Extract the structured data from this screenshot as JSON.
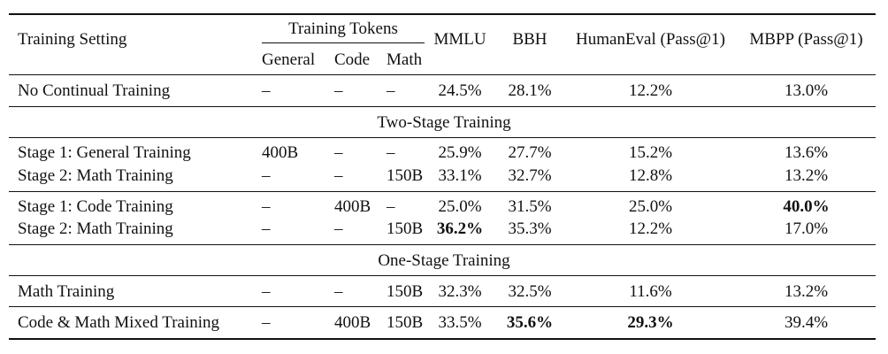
{
  "table": {
    "headers": {
      "setting": "Training Setting",
      "training_tokens": "Training Tokens",
      "general": "General",
      "code": "Code",
      "math": "Math",
      "mmlu": "MMLU",
      "bbh": "BBH",
      "humaneval": "HumanEval (Pass@1)",
      "mbpp": "MBPP (Pass@1)"
    },
    "sections": {
      "two_stage": "Two-Stage Training",
      "one_stage": "One-Stage Training"
    },
    "rows": [
      {
        "setting": "No Continual Training",
        "general": "–",
        "code": "–",
        "math": "–",
        "mmlu": "24.5%",
        "bbh": "28.1%",
        "humaneval": "12.2%",
        "mbpp": "13.0%"
      },
      {
        "setting": "Stage 1: General Training",
        "general": "400B",
        "code": "–",
        "math": "–",
        "mmlu": "25.9%",
        "bbh": "27.7%",
        "humaneval": "15.2%",
        "mbpp": "13.6%"
      },
      {
        "setting": "Stage 2: Math Training",
        "general": "–",
        "code": "–",
        "math": "150B",
        "mmlu": "33.1%",
        "bbh": "32.7%",
        "humaneval": "12.8%",
        "mbpp": "13.2%"
      },
      {
        "setting": "Stage 1: Code Training",
        "general": "–",
        "code": "400B",
        "math": "–",
        "mmlu": "25.0%",
        "bbh": "31.5%",
        "humaneval": "25.0%",
        "mbpp": "40.0%"
      },
      {
        "setting": "Stage 2: Math Training",
        "general": "–",
        "code": "–",
        "math": "150B",
        "mmlu": "36.2%",
        "bbh": "35.3%",
        "humaneval": "12.2%",
        "mbpp": "17.0%"
      },
      {
        "setting": "Math Training",
        "general": "–",
        "code": "–",
        "math": "150B",
        "mmlu": "32.3%",
        "bbh": "32.5%",
        "humaneval": "11.6%",
        "mbpp": "13.2%"
      },
      {
        "setting": "Code & Math Mixed Training",
        "general": "–",
        "code": "400B",
        "math": "150B",
        "mmlu": "33.5%",
        "bbh": "35.6%",
        "humaneval": "29.3%",
        "mbpp": "39.4%"
      }
    ]
  }
}
